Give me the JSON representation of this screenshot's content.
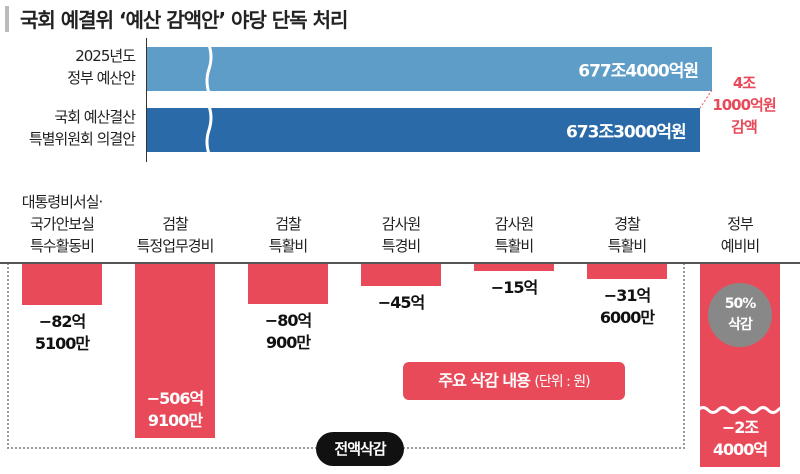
{
  "title": "국회 예결위 ‘예산 감액안’ 야당 단독 처리",
  "colors": {
    "gov_bar": "#5d9dc8",
    "assembly_bar": "#2a6aa8",
    "cut": "#e84a5a",
    "circle": "#888888"
  },
  "chart_data": [
    {
      "type": "bar",
      "orientation": "horizontal",
      "axis_break": true,
      "categories": [
        "2025년도 정부 예산안",
        "국회 예산결산 특별위원회 의결안"
      ],
      "category_lines": [
        [
          "2025년도",
          "정부 예산안"
        ],
        [
          "국회 예산결산",
          "특별위원회 의결안"
        ]
      ],
      "values": [
        677.4,
        673.3
      ],
      "unit": "조원",
      "data_labels": [
        "677조4000억원",
        "673조3000억원"
      ],
      "annotation": [
        "4조",
        "1000억원",
        "감액"
      ]
    },
    {
      "type": "bar",
      "title": "주요 삭감 내용",
      "unit_label": "(단위 : 원)",
      "categories": [
        [
          "대통령비서실·",
          "국가안보실",
          "특수활동비"
        ],
        [
          "검찰",
          "특정업무경비"
        ],
        [
          "검찰",
          "특활비"
        ],
        [
          "감사원",
          "특경비"
        ],
        [
          "감사원",
          "특활비"
        ],
        [
          "경찰",
          "특활비"
        ],
        [
          "정부",
          "예비비"
        ]
      ],
      "values": [
        -82.51,
        -506.91,
        -80.09,
        -45,
        -15,
        -31.6,
        -24000
      ],
      "value_unit": "억원",
      "data_labels": [
        [
          "−82억",
          "5100만"
        ],
        [
          "−506억",
          "9100만"
        ],
        [
          "−80억",
          "900만"
        ],
        [
          "−45억"
        ],
        [
          "−15억"
        ],
        [
          "−31억",
          "6000만"
        ],
        [
          "−2조",
          "4000억"
        ]
      ],
      "group_label": "전액삭감",
      "badge": [
        "50%",
        "삭감"
      ]
    }
  ]
}
